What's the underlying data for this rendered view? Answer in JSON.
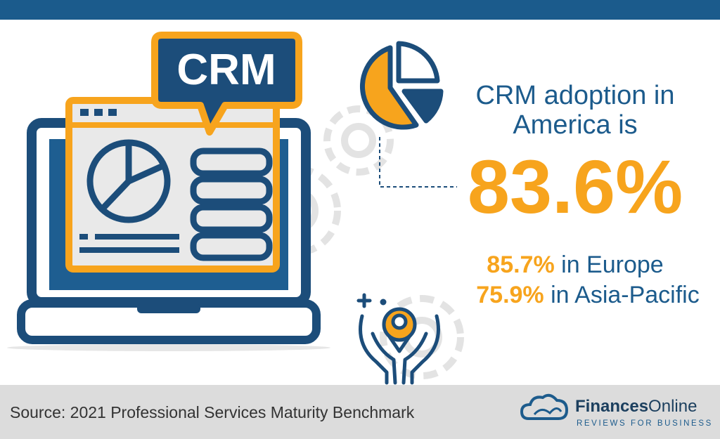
{
  "illustration": {
    "label": "CRM"
  },
  "stat": {
    "headline_line1": "CRM adoption in",
    "headline_line2": "America is",
    "value": "83.6%",
    "regions": [
      {
        "value": "85.7%",
        "label": " in Europe"
      },
      {
        "value": "75.9%",
        "label": " in Asia-Pacific"
      }
    ]
  },
  "footer": {
    "source": "Source: 2021 Professional Services Maturity Benchmark",
    "brand": {
      "name_part1": "Finances",
      "name_part2": "Online",
      "tagline": "REVIEWS FOR BUSINESS"
    }
  }
}
